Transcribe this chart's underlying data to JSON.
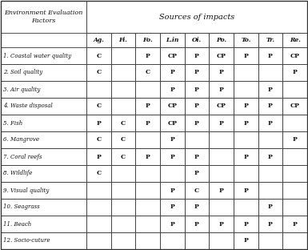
{
  "title_left_line1": "Environment Evaluation",
  "title_left_line2": "Factors",
  "title_right": "Sources of impacts",
  "col_headers": [
    "Ag.",
    "Fi.",
    "Fo.",
    "L.in",
    "Oi.",
    "Po.",
    "To.",
    "Tr.",
    "Re."
  ],
  "row_headers": [
    "1. Coastal water quality",
    "2. Soil quality",
    "3. Air quality",
    "4. Waste disposal",
    "5. Fish",
    "6. Mangrove",
    "7. Coral reefs",
    "8. Wildlife",
    "9. Visual quality",
    "10. Seagrass",
    "11. Beach",
    "12. Socio-cuture"
  ],
  "cell_data": [
    [
      "C",
      "",
      "P",
      "CP",
      "P",
      "CP",
      "P",
      "P",
      "CP"
    ],
    [
      "C",
      "",
      "C",
      "P",
      "P",
      "P",
      "",
      "",
      "P"
    ],
    [
      "",
      "",
      "",
      "P",
      "P",
      "P",
      "",
      "P",
      ""
    ],
    [
      "C",
      "",
      "P",
      "CP",
      "P",
      "CP",
      "P",
      "P",
      "CP"
    ],
    [
      "P",
      "C",
      "P",
      "CP",
      "P",
      "P",
      "P",
      "P",
      ""
    ],
    [
      "C",
      "C",
      "",
      "P",
      "",
      "",
      "",
      "",
      "P"
    ],
    [
      "P",
      "C",
      "P",
      "P",
      "P",
      "",
      "P",
      "P",
      ""
    ],
    [
      "C",
      "",
      "",
      "",
      "P",
      "",
      "",
      "",
      ""
    ],
    [
      "",
      "",
      "",
      "P",
      "C",
      "P",
      "P",
      "",
      ""
    ],
    [
      "",
      "",
      "",
      "P",
      "P",
      "",
      "",
      "P",
      ""
    ],
    [
      "",
      "",
      "",
      "P",
      "P",
      "P",
      "P",
      "P",
      "P"
    ],
    [
      "",
      "",
      "",
      "",
      "",
      "",
      "P",
      "",
      ""
    ]
  ],
  "bg_color": "#ffffff",
  "line_color": "#333333",
  "text_color": "#111111"
}
